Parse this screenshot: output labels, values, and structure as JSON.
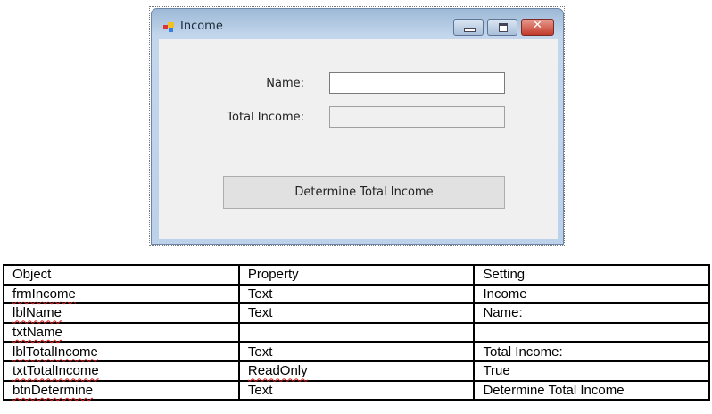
{
  "window": {
    "title": "Income",
    "controls": [
      "minimize",
      "maximize",
      "close"
    ]
  },
  "form": {
    "name_label": "Name:",
    "name_value": "",
    "total_label": "Total Income:",
    "total_value": "",
    "button_label": "Determine Total Income"
  },
  "table": {
    "headers": [
      "Object",
      "Property",
      "Setting"
    ],
    "rows": [
      [
        "frmIncome",
        "Text",
        "Income"
      ],
      [
        "lblName",
        "Text",
        "Name:"
      ],
      [
        "txtName",
        "",
        ""
      ],
      [
        "lblTotalIncome",
        "Text",
        "Total Income:"
      ],
      [
        "txtTotalIncome",
        "ReadOnly",
        "True"
      ],
      [
        "btnDetermine",
        "Text",
        "Determine Total Income"
      ]
    ]
  },
  "colors": {
    "close": "#c9463a",
    "titlebar": "#b8cde6",
    "client": "#f0f0f0"
  }
}
